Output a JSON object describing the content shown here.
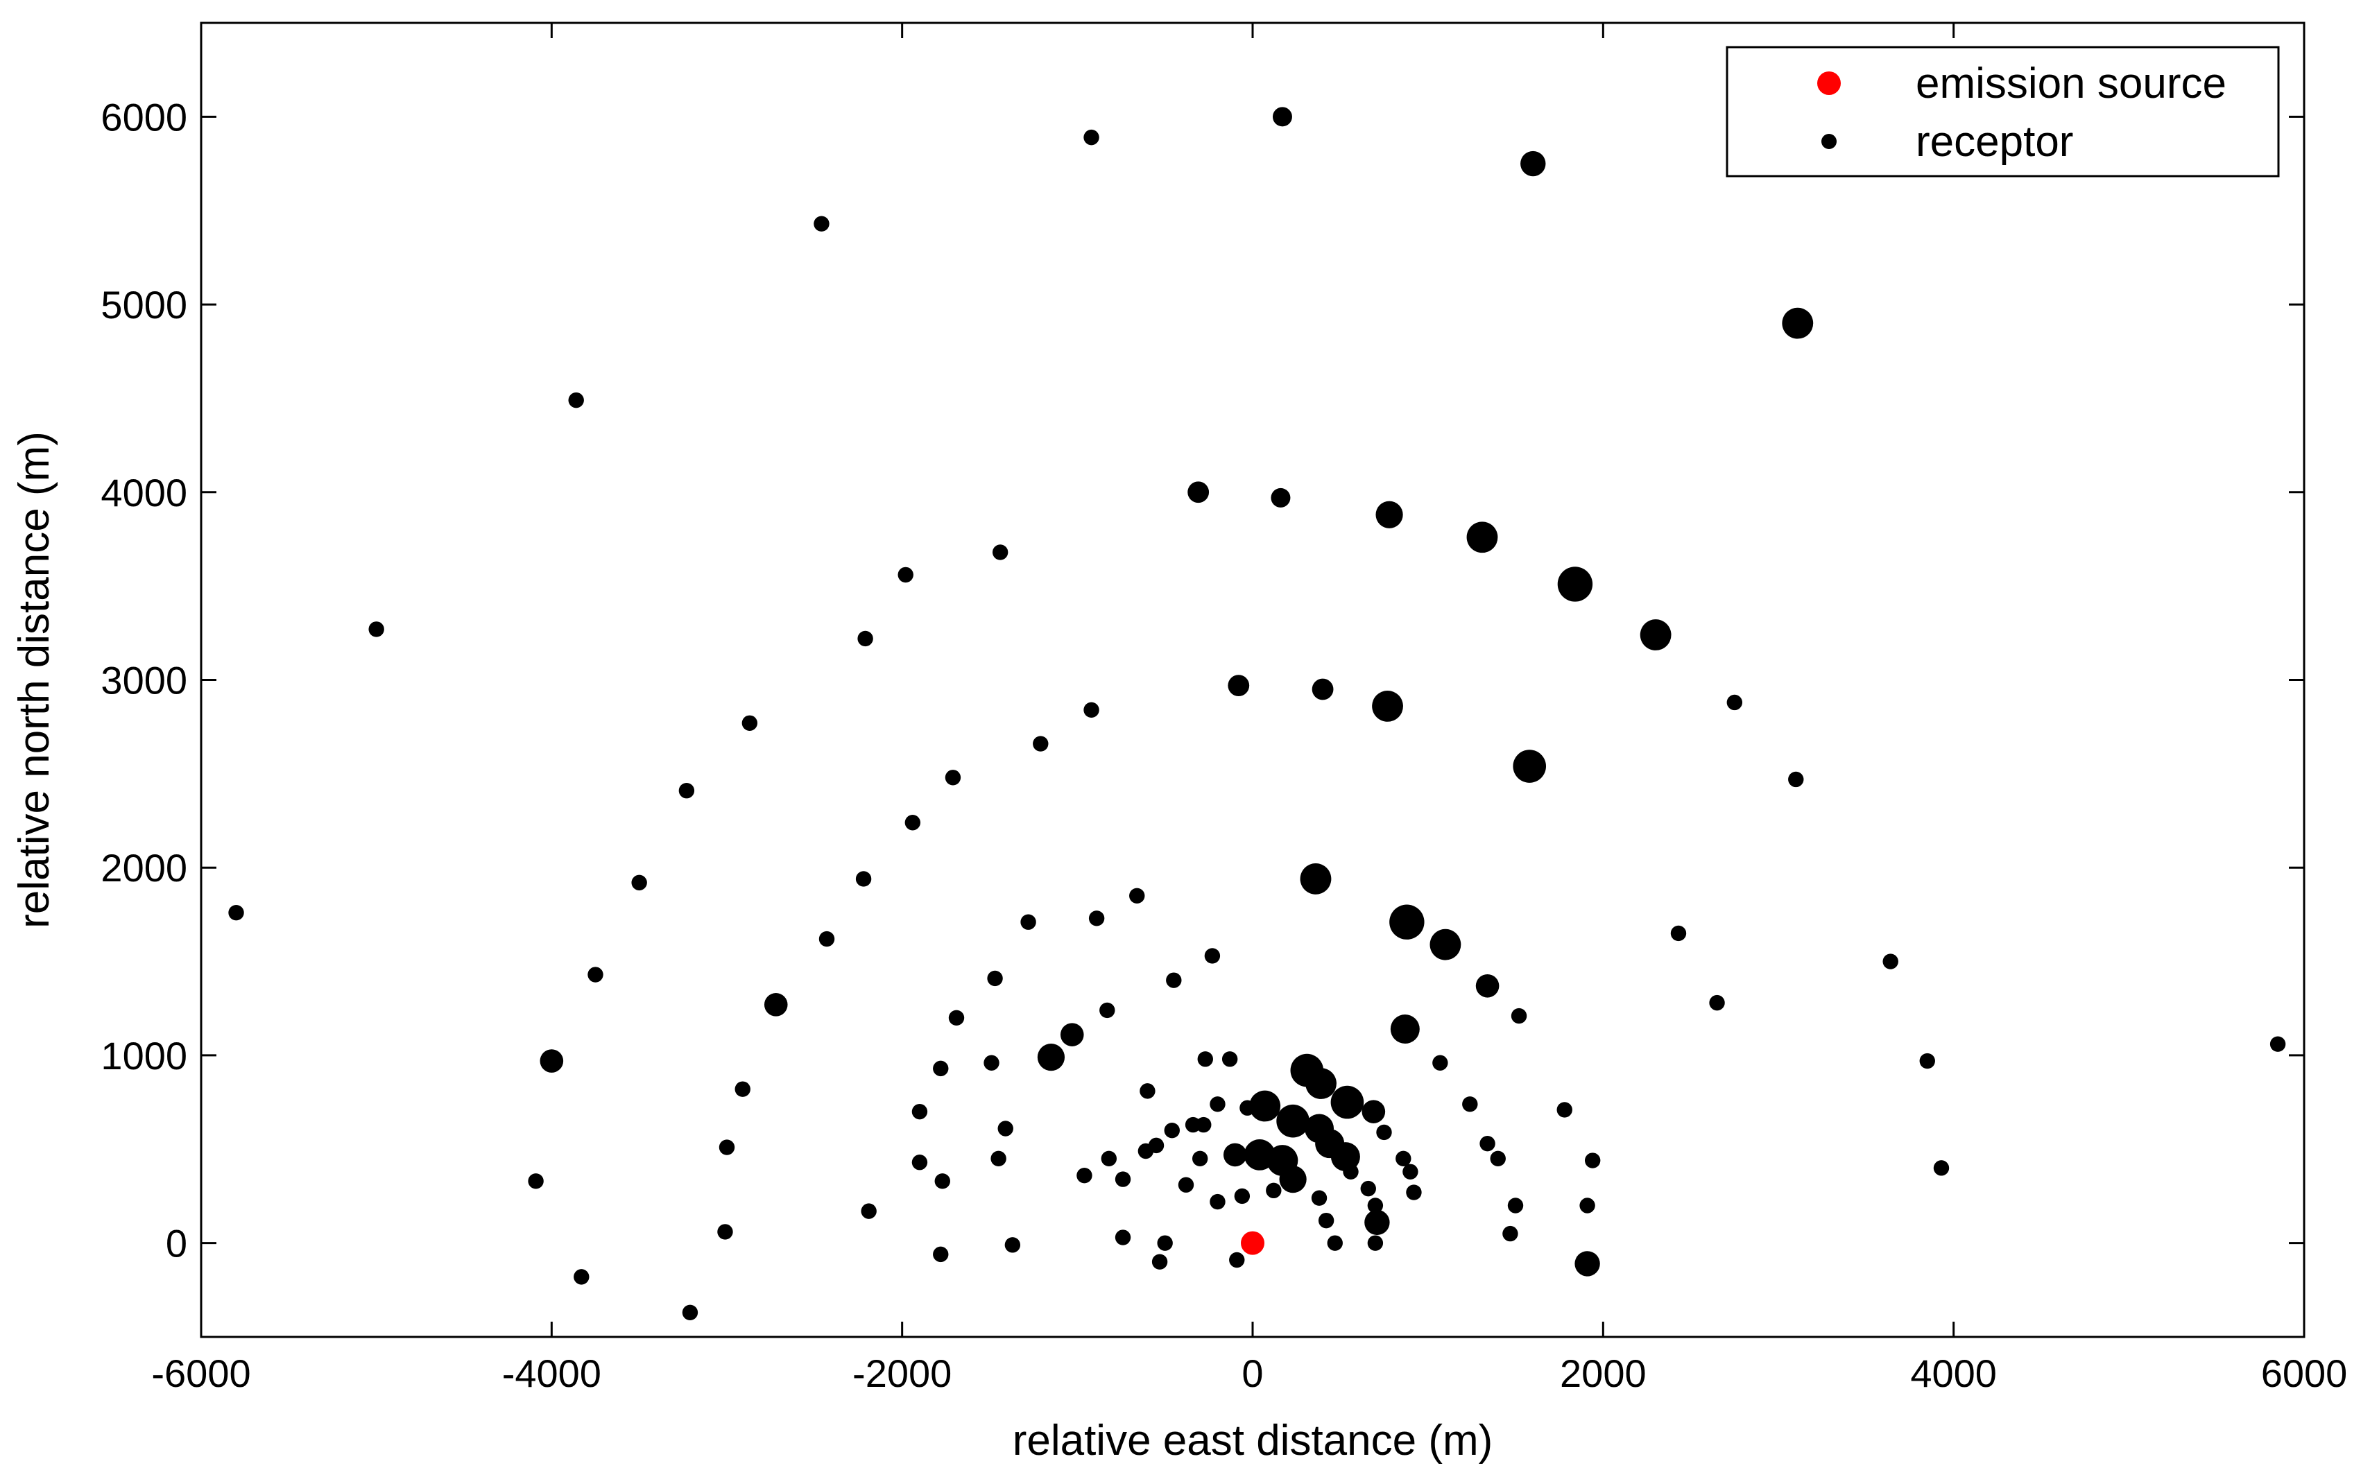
{
  "chart_data": {
    "type": "scatter",
    "xlabel": "relative east distance (m)",
    "ylabel": "relative north distance (m)",
    "xlim": [
      -6000,
      6000
    ],
    "ylim": [
      -500,
      6500
    ],
    "xticks": [
      -6000,
      -4000,
      -2000,
      0,
      2000,
      4000,
      6000
    ],
    "yticks": [
      0,
      1000,
      2000,
      3000,
      4000,
      5000,
      6000
    ],
    "grid": false,
    "legend": {
      "position": "top-right",
      "entries": [
        {
          "label": "emission source",
          "color": "#ff0000"
        },
        {
          "label": "receptor",
          "color": "#000000"
        }
      ]
    },
    "series": [
      {
        "name": "emission source",
        "color": "#ff0000",
        "points": [
          {
            "x": 0,
            "y": 0
          }
        ]
      },
      {
        "name": "receptor",
        "color": "#000000",
        "points": [
          {
            "x": 170,
            "y": 6000,
            "s": 1.0
          },
          {
            "x": -920,
            "y": 5890,
            "s": 0.8
          },
          {
            "x": 1600,
            "y": 5750,
            "s": 1.3
          },
          {
            "x": -2460,
            "y": 5430,
            "s": 0.8
          },
          {
            "x": 3110,
            "y": 4900,
            "s": 1.6
          },
          {
            "x": -3860,
            "y": 4490,
            "s": 0.8
          },
          {
            "x": -310,
            "y": 4000,
            "s": 1.1
          },
          {
            "x": 160,
            "y": 3970,
            "s": 1.0
          },
          {
            "x": 780,
            "y": 3880,
            "s": 1.4
          },
          {
            "x": 1310,
            "y": 3760,
            "s": 1.6
          },
          {
            "x": 1840,
            "y": 3510,
            "s": 1.8
          },
          {
            "x": 2300,
            "y": 3240,
            "s": 1.6
          },
          {
            "x": -1440,
            "y": 3680,
            "s": 0.8
          },
          {
            "x": -1980,
            "y": 3560,
            "s": 0.8
          },
          {
            "x": -5000,
            "y": 3270,
            "s": 0.8
          },
          {
            "x": -2210,
            "y": 3220,
            "s": 0.8
          },
          {
            "x": -80,
            "y": 2970,
            "s": 1.1
          },
          {
            "x": 400,
            "y": 2950,
            "s": 1.1
          },
          {
            "x": 770,
            "y": 2860,
            "s": 1.6
          },
          {
            "x": 2750,
            "y": 2880,
            "s": 0.8
          },
          {
            "x": -920,
            "y": 2840,
            "s": 0.8
          },
          {
            "x": -2870,
            "y": 2770,
            "s": 0.8
          },
          {
            "x": -1210,
            "y": 2660,
            "s": 0.8
          },
          {
            "x": 1580,
            "y": 2540,
            "s": 1.7
          },
          {
            "x": 3100,
            "y": 2470,
            "s": 0.8
          },
          {
            "x": -1710,
            "y": 2480,
            "s": 0.8
          },
          {
            "x": -3230,
            "y": 2410,
            "s": 0.8
          },
          {
            "x": -1940,
            "y": 2240,
            "s": 0.8
          },
          {
            "x": 360,
            "y": 1940,
            "s": 1.6
          },
          {
            "x": -2220,
            "y": 1940,
            "s": 0.8
          },
          {
            "x": -3500,
            "y": 1920,
            "s": 0.8
          },
          {
            "x": -660,
            "y": 1850,
            "s": 0.8
          },
          {
            "x": -5800,
            "y": 1760,
            "s": 0.8
          },
          {
            "x": 880,
            "y": 1710,
            "s": 1.8
          },
          {
            "x": -890,
            "y": 1730,
            "s": 0.8
          },
          {
            "x": -1280,
            "y": 1710,
            "s": 0.8
          },
          {
            "x": 2430,
            "y": 1650,
            "s": 0.8
          },
          {
            "x": -2430,
            "y": 1620,
            "s": 0.8
          },
          {
            "x": 1100,
            "y": 1590,
            "s": 1.6
          },
          {
            "x": -230,
            "y": 1530,
            "s": 0.8
          },
          {
            "x": 3640,
            "y": 1500,
            "s": 0.8
          },
          {
            "x": -3750,
            "y": 1430,
            "s": 0.8
          },
          {
            "x": -1470,
            "y": 1410,
            "s": 0.8
          },
          {
            "x": -450,
            "y": 1400,
            "s": 0.8
          },
          {
            "x": 1340,
            "y": 1370,
            "s": 1.2
          },
          {
            "x": -2720,
            "y": 1270,
            "s": 1.2
          },
          {
            "x": 2650,
            "y": 1280,
            "s": 0.8
          },
          {
            "x": -830,
            "y": 1240,
            "s": 0.8
          },
          {
            "x": 1520,
            "y": 1210,
            "s": 0.8
          },
          {
            "x": -1690,
            "y": 1200,
            "s": 0.8
          },
          {
            "x": 870,
            "y": 1140,
            "s": 1.5
          },
          {
            "x": -1030,
            "y": 1110,
            "s": 1.2
          },
          {
            "x": 5850,
            "y": 1060,
            "s": 0.8
          },
          {
            "x": -1150,
            "y": 990,
            "s": 1.4
          },
          {
            "x": -4000,
            "y": 970,
            "s": 1.2
          },
          {
            "x": 3850,
            "y": 970,
            "s": 0.8
          },
          {
            "x": -270,
            "y": 980,
            "s": 0.8
          },
          {
            "x": -130,
            "y": 980,
            "s": 0.8
          },
          {
            "x": 1070,
            "y": 960,
            "s": 0.8
          },
          {
            "x": -1490,
            "y": 960,
            "s": 0.8
          },
          {
            "x": -1780,
            "y": 930,
            "s": 0.8
          },
          {
            "x": 310,
            "y": 920,
            "s": 1.7
          },
          {
            "x": 390,
            "y": 850,
            "s": 1.6
          },
          {
            "x": -2910,
            "y": 820,
            "s": 0.8
          },
          {
            "x": -600,
            "y": 810,
            "s": 0.8
          },
          {
            "x": 540,
            "y": 750,
            "s": 1.7
          },
          {
            "x": 70,
            "y": 730,
            "s": 1.6
          },
          {
            "x": 1240,
            "y": 740,
            "s": 0.8
          },
          {
            "x": -200,
            "y": 740,
            "s": 0.8
          },
          {
            "x": -30,
            "y": 720,
            "s": 0.8
          },
          {
            "x": 690,
            "y": 700,
            "s": 1.2
          },
          {
            "x": 1780,
            "y": 710,
            "s": 0.8
          },
          {
            "x": -1900,
            "y": 700,
            "s": 0.8
          },
          {
            "x": 230,
            "y": 650,
            "s": 1.7
          },
          {
            "x": -280,
            "y": 630,
            "s": 0.8
          },
          {
            "x": -340,
            "y": 630,
            "s": 0.8
          },
          {
            "x": -1410,
            "y": 610,
            "s": 0.8
          },
          {
            "x": 380,
            "y": 610,
            "s": 1.5
          },
          {
            "x": -460,
            "y": 600,
            "s": 0.8
          },
          {
            "x": 750,
            "y": 590,
            "s": 0.8
          },
          {
            "x": 440,
            "y": 530,
            "s": 1.5
          },
          {
            "x": 1340,
            "y": 530,
            "s": 0.8
          },
          {
            "x": -3000,
            "y": 510,
            "s": 0.8
          },
          {
            "x": -550,
            "y": 520,
            "s": 0.8
          },
          {
            "x": -610,
            "y": 490,
            "s": 0.8
          },
          {
            "x": 40,
            "y": 470,
            "s": 1.6
          },
          {
            "x": 530,
            "y": 460,
            "s": 1.5
          },
          {
            "x": -100,
            "y": 470,
            "s": 1.2
          },
          {
            "x": 170,
            "y": 440,
            "s": 1.6
          },
          {
            "x": -820,
            "y": 450,
            "s": 0.8
          },
          {
            "x": 1400,
            "y": 450,
            "s": 0.8
          },
          {
            "x": -1450,
            "y": 450,
            "s": 0.8
          },
          {
            "x": -300,
            "y": 450,
            "s": 0.8
          },
          {
            "x": 860,
            "y": 450,
            "s": 0.8
          },
          {
            "x": 1940,
            "y": 440,
            "s": 0.8
          },
          {
            "x": -1900,
            "y": 430,
            "s": 0.8
          },
          {
            "x": 3930,
            "y": 400,
            "s": 0.8
          },
          {
            "x": 560,
            "y": 380,
            "s": 0.8
          },
          {
            "x": 900,
            "y": 380,
            "s": 0.8
          },
          {
            "x": -960,
            "y": 360,
            "s": 0.8
          },
          {
            "x": 230,
            "y": 340,
            "s": 1.4
          },
          {
            "x": -4090,
            "y": 330,
            "s": 0.8
          },
          {
            "x": -1770,
            "y": 330,
            "s": 0.8
          },
          {
            "x": -740,
            "y": 340,
            "s": 0.8
          },
          {
            "x": -380,
            "y": 310,
            "s": 0.8
          },
          {
            "x": 660,
            "y": 290,
            "s": 0.8
          },
          {
            "x": 120,
            "y": 280,
            "s": 0.8
          },
          {
            "x": 920,
            "y": 270,
            "s": 0.8
          },
          {
            "x": 380,
            "y": 240,
            "s": 0.8
          },
          {
            "x": -60,
            "y": 250,
            "s": 0.8
          },
          {
            "x": -200,
            "y": 220,
            "s": 0.8
          },
          {
            "x": 700,
            "y": 200,
            "s": 0.8
          },
          {
            "x": 1500,
            "y": 200,
            "s": 0.8
          },
          {
            "x": 1910,
            "y": 200,
            "s": 0.8
          },
          {
            "x": -2190,
            "y": 170,
            "s": 0.8
          },
          {
            "x": 420,
            "y": 120,
            "s": 0.8
          },
          {
            "x": 710,
            "y": 110,
            "s": 1.3
          },
          {
            "x": -3010,
            "y": 60,
            "s": 0.8
          },
          {
            "x": 1470,
            "y": 50,
            "s": 0.8
          },
          {
            "x": -740,
            "y": 30,
            "s": 0.8
          },
          {
            "x": -500,
            "y": 0,
            "s": 0.8
          },
          {
            "x": 470,
            "y": 0,
            "s": 0.8
          },
          {
            "x": 700,
            "y": 0,
            "s": 0.8
          },
          {
            "x": -1370,
            "y": -10,
            "s": 0.8
          },
          {
            "x": -1780,
            "y": -60,
            "s": 0.8
          },
          {
            "x": -90,
            "y": -90,
            "s": 0.8
          },
          {
            "x": -530,
            "y": -100,
            "s": 0.8
          },
          {
            "x": 1910,
            "y": -110,
            "s": 1.3
          },
          {
            "x": -3830,
            "y": -180,
            "s": 0.8
          },
          {
            "x": -3210,
            "y": -370,
            "s": 0.8
          }
        ]
      }
    ]
  }
}
